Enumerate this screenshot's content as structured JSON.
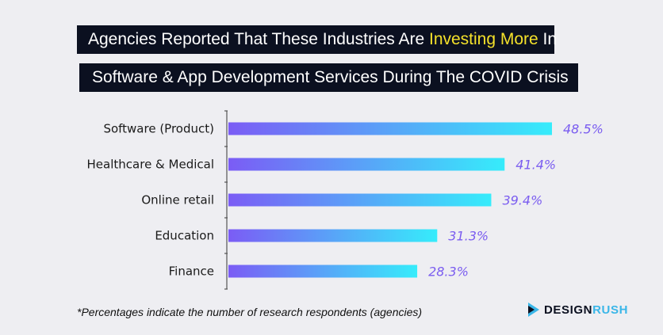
{
  "title": {
    "line1_prefix": "Agencies Reported That These Industries Are ",
    "line1_highlight": "Investing More",
    "line1_suffix": " In",
    "line2": "Software & App Development Services During The COVID Crisis"
  },
  "chart_data": {
    "type": "bar",
    "orientation": "horizontal",
    "categories": [
      "Software (Product)",
      "Healthcare & Medical",
      "Online retail",
      "Education",
      "Finance"
    ],
    "values": [
      48.5,
      41.4,
      39.4,
      31.3,
      28.3
    ],
    "value_labels": [
      "48.5%",
      "41.4%",
      "39.4%",
      "31.3%",
      "28.3%"
    ],
    "xlim": [
      0,
      50
    ],
    "grid": false,
    "colors": {
      "bar_start": "#7b5cf5",
      "bar_end": "#36ecfb",
      "value_text": "#7a5cf0"
    }
  },
  "footnote": "*Percentages indicate the number of research respondents (agencies)",
  "brand": {
    "part1": "DESIGN",
    "part2": "RUSH"
  }
}
